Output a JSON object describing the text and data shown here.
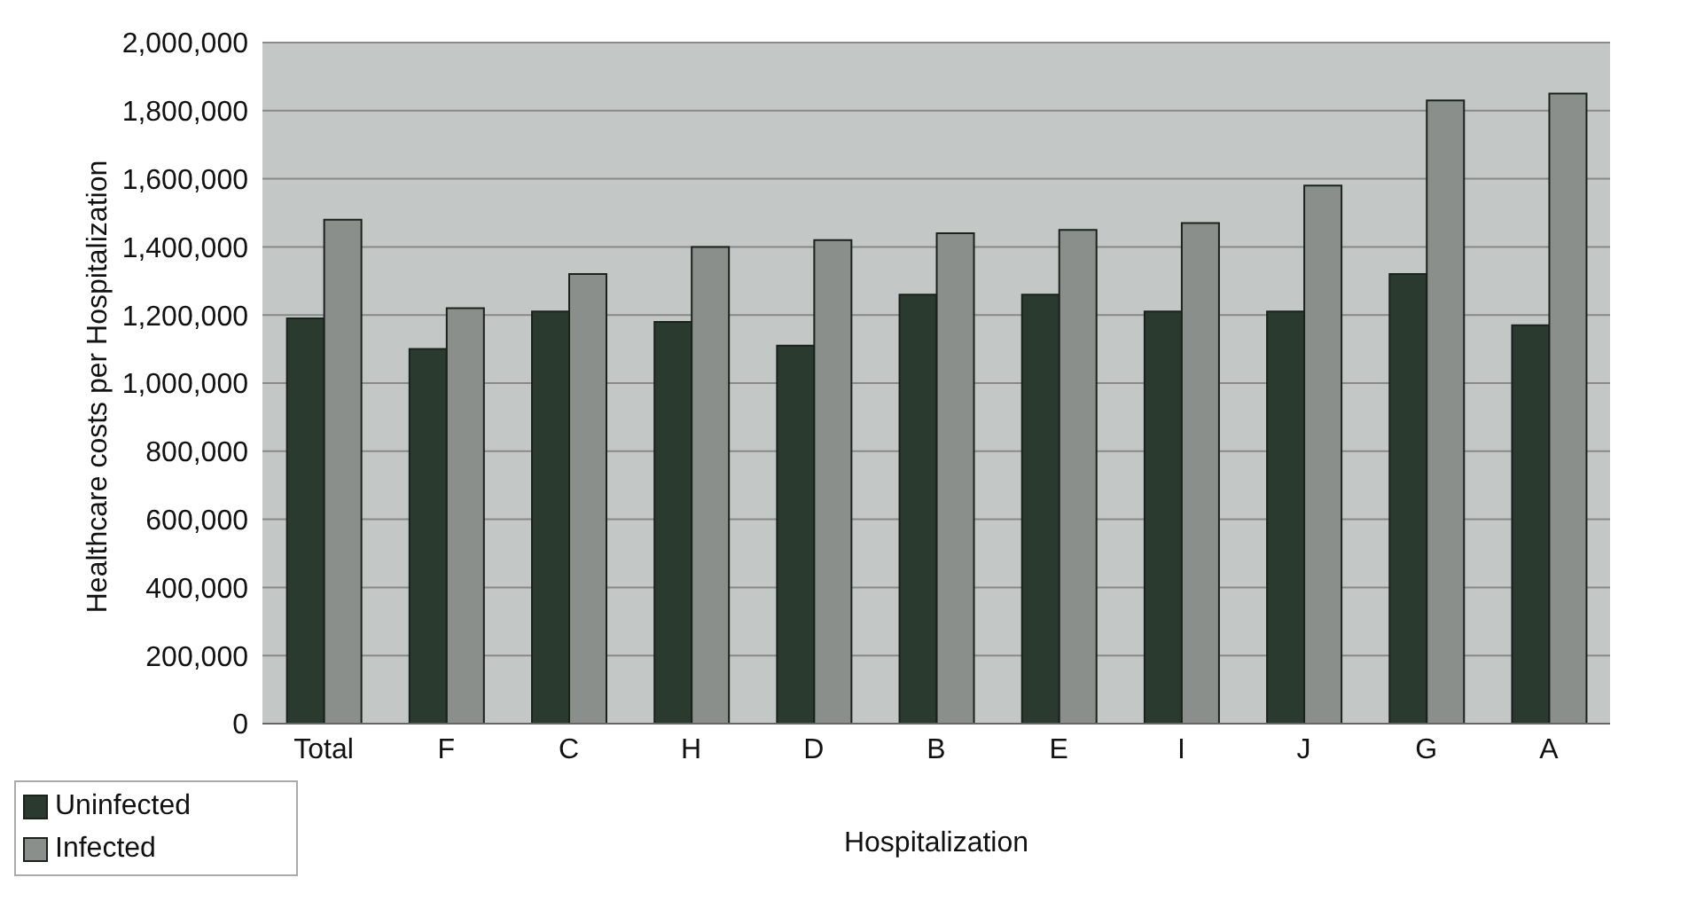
{
  "chart_data": {
    "type": "bar",
    "xlabel": "Hospitalization",
    "ylabel": "Healthcare costs per Hospitalization",
    "categories": [
      "Total",
      "F",
      "C",
      "H",
      "D",
      "B",
      "E",
      "I",
      "J",
      "G",
      "A"
    ],
    "series": [
      {
        "name": "Uninfected",
        "color": "#2b3a2f",
        "values": [
          1190000,
          1100000,
          1210000,
          1180000,
          1110000,
          1260000,
          1260000,
          1210000,
          1210000,
          1320000,
          1170000
        ]
      },
      {
        "name": "Infected",
        "color": "#8a8f8c",
        "values": [
          1480000,
          1220000,
          1320000,
          1400000,
          1420000,
          1440000,
          1450000,
          1470000,
          1580000,
          1830000,
          1850000
        ]
      }
    ],
    "ylim": [
      0,
      2000000
    ],
    "yticks": [
      0,
      {
        "value": 200000,
        "label": "200,000"
      },
      {
        "value": 400000,
        "label": "400,000"
      },
      {
        "value": 600000,
        "label": "600,000"
      },
      {
        "value": 800000,
        "label": "800,000"
      },
      {
        "value": 1000000,
        "label": "1,000,000"
      },
      {
        "value": 1200000,
        "label": "1,200,000"
      },
      {
        "value": 1400000,
        "label": "1,400,000"
      },
      {
        "value": 1600000,
        "label": "1,600,000"
      },
      {
        "value": 1800000,
        "label": "1,800,000"
      },
      {
        "value": 2000000,
        "label": "2,000,000"
      }
    ],
    "grid": "y",
    "legend": "bottom left"
  }
}
